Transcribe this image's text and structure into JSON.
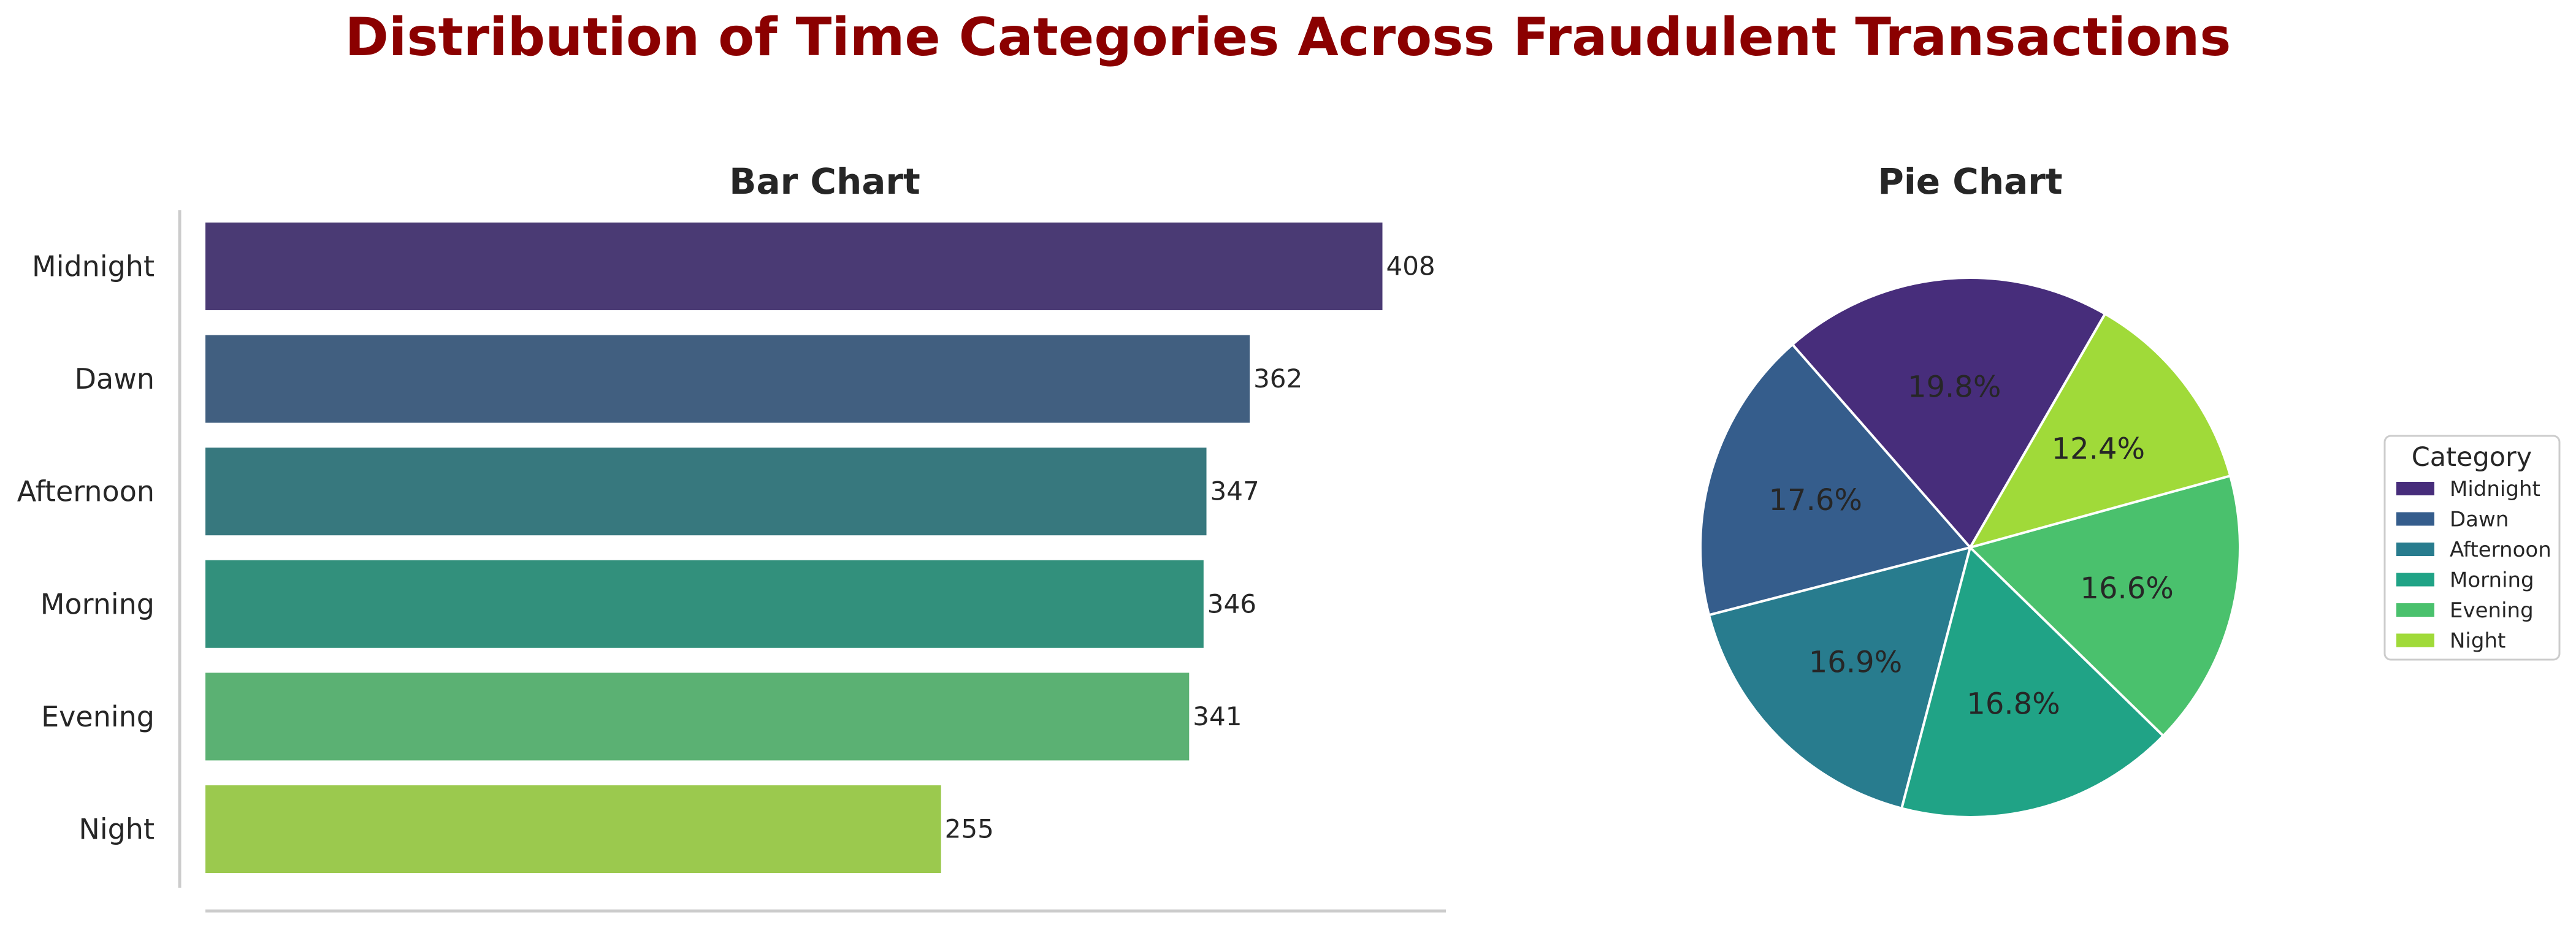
{
  "figure": {
    "title": "Distribution of Time Categories Across Fraudulent Transactions",
    "title_color": "#8b0000"
  },
  "chart_data": [
    {
      "type": "bar",
      "orientation": "horizontal",
      "title": "Bar Chart",
      "xlabel": "",
      "ylabel": "",
      "categories": [
        "Midnight",
        "Dawn",
        "Afternoon",
        "Morning",
        "Evening",
        "Night"
      ],
      "values": [
        408,
        362,
        347,
        346,
        341,
        255
      ],
      "data_labels": [
        "408",
        "362",
        "347",
        "346",
        "341",
        "255"
      ],
      "xlim": [
        0,
        430
      ],
      "grid": false,
      "colors": [
        "#4a3a74",
        "#415f80",
        "#37787e",
        "#32907c",
        "#5bb173",
        "#9bc94e"
      ]
    },
    {
      "type": "pie",
      "title": "Pie Chart",
      "labels": [
        "Midnight",
        "Dawn",
        "Afternoon",
        "Morning",
        "Evening",
        "Night"
      ],
      "values": [
        19.8,
        17.6,
        16.9,
        16.8,
        16.6,
        12.4
      ],
      "autopct_labels": [
        "19.8%",
        "17.6%",
        "16.9%",
        "16.8%",
        "16.6%",
        "12.4%"
      ],
      "startangle": 60,
      "colors": [
        "#472d7b",
        "#355d8c",
        "#287c8e",
        "#20a386",
        "#4ac16d",
        "#a0da39"
      ],
      "legend": {
        "title": "Category",
        "placement": "right",
        "entries": [
          "Midnight",
          "Dawn",
          "Afternoon",
          "Morning",
          "Evening",
          "Night"
        ]
      }
    }
  ]
}
